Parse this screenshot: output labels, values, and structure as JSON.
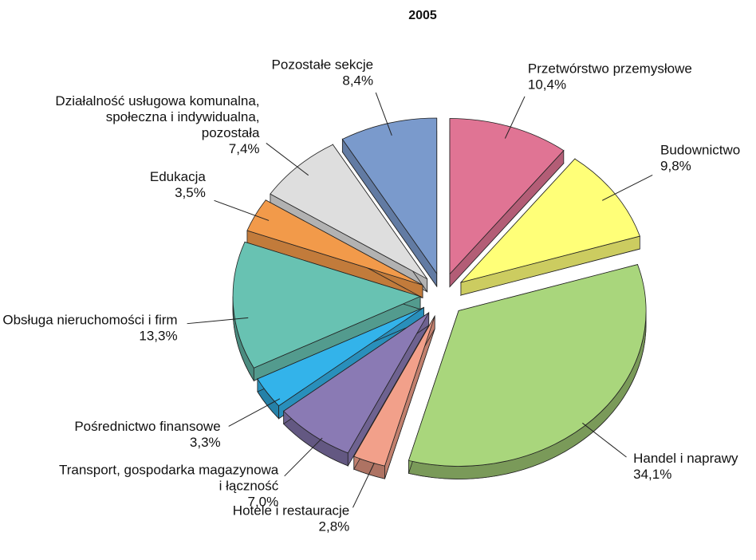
{
  "chart_data": {
    "type": "pie",
    "title": "2005",
    "categories": [
      "Przetwórstwo przemysłowe",
      "Budownictwo",
      "Handel i naprawy",
      "Hotele i restauracje",
      "Transport, gospodarka magazynowa i łączność",
      "Pośrednictwo finansowe",
      "Obsługa nieruchomości i firm",
      "Edukacja",
      "Działalność usługowa komunalna, społeczna i indywidualna, pozostała",
      "Pozostałe sekcje"
    ],
    "values": [
      10.4,
      9.8,
      34.1,
      2.8,
      7.0,
      3.3,
      13.3,
      3.5,
      7.4,
      8.4
    ],
    "value_labels": [
      "10,4%",
      "9,8%",
      "34,1%",
      "2,8%",
      "7,0%",
      "3,3%",
      "13,3%",
      "3,5%",
      "7,4%",
      "8,4%"
    ],
    "colors": [
      "#e07494",
      "#ffff78",
      "#a9d67c",
      "#f2a08a",
      "#8a7ab4",
      "#33b3ea",
      "#68c2b2",
      "#f29a4a",
      "#dedede",
      "#7a9acc"
    ]
  }
}
